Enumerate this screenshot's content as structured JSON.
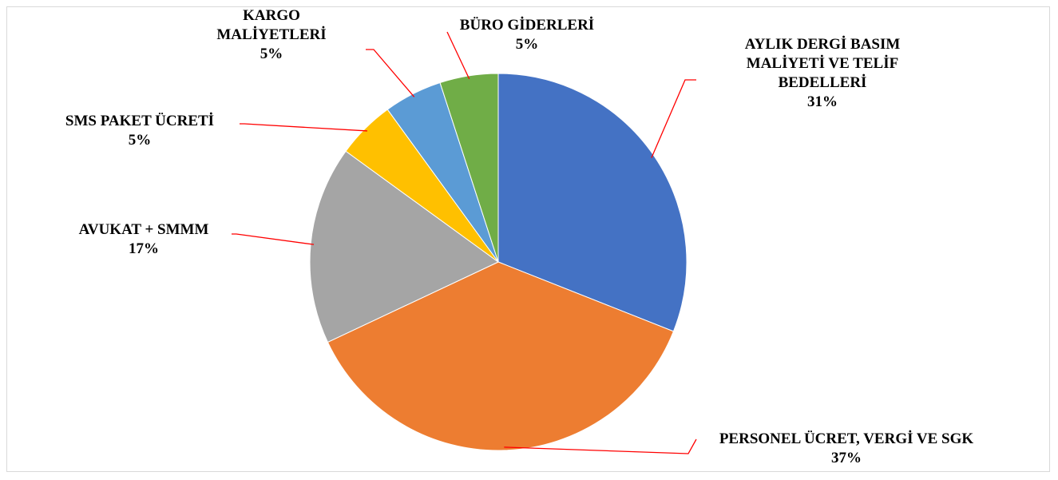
{
  "chart_data": {
    "type": "pie",
    "categories": [
      "AYLIK DERGİ BASIM MALİYETİ VE TELİF BEDELLERİ",
      "PERSONEL ÜCRET, VERGİ VE SGK",
      "AVUKAT + SMMM",
      "SMS PAKET ÜCRETİ",
      "KARGO MALİYETLERİ",
      "BÜRO GİDERLERİ"
    ],
    "values": [
      31,
      37,
      17,
      5,
      5,
      5
    ],
    "value_labels": [
      "31%",
      "37%",
      "17%",
      "5%",
      "5%",
      "5%"
    ],
    "colors": [
      "#4472c4",
      "#ed7d31",
      "#a5a5a5",
      "#ffc000",
      "#5b9bd5",
      "#70ad47"
    ]
  }
}
